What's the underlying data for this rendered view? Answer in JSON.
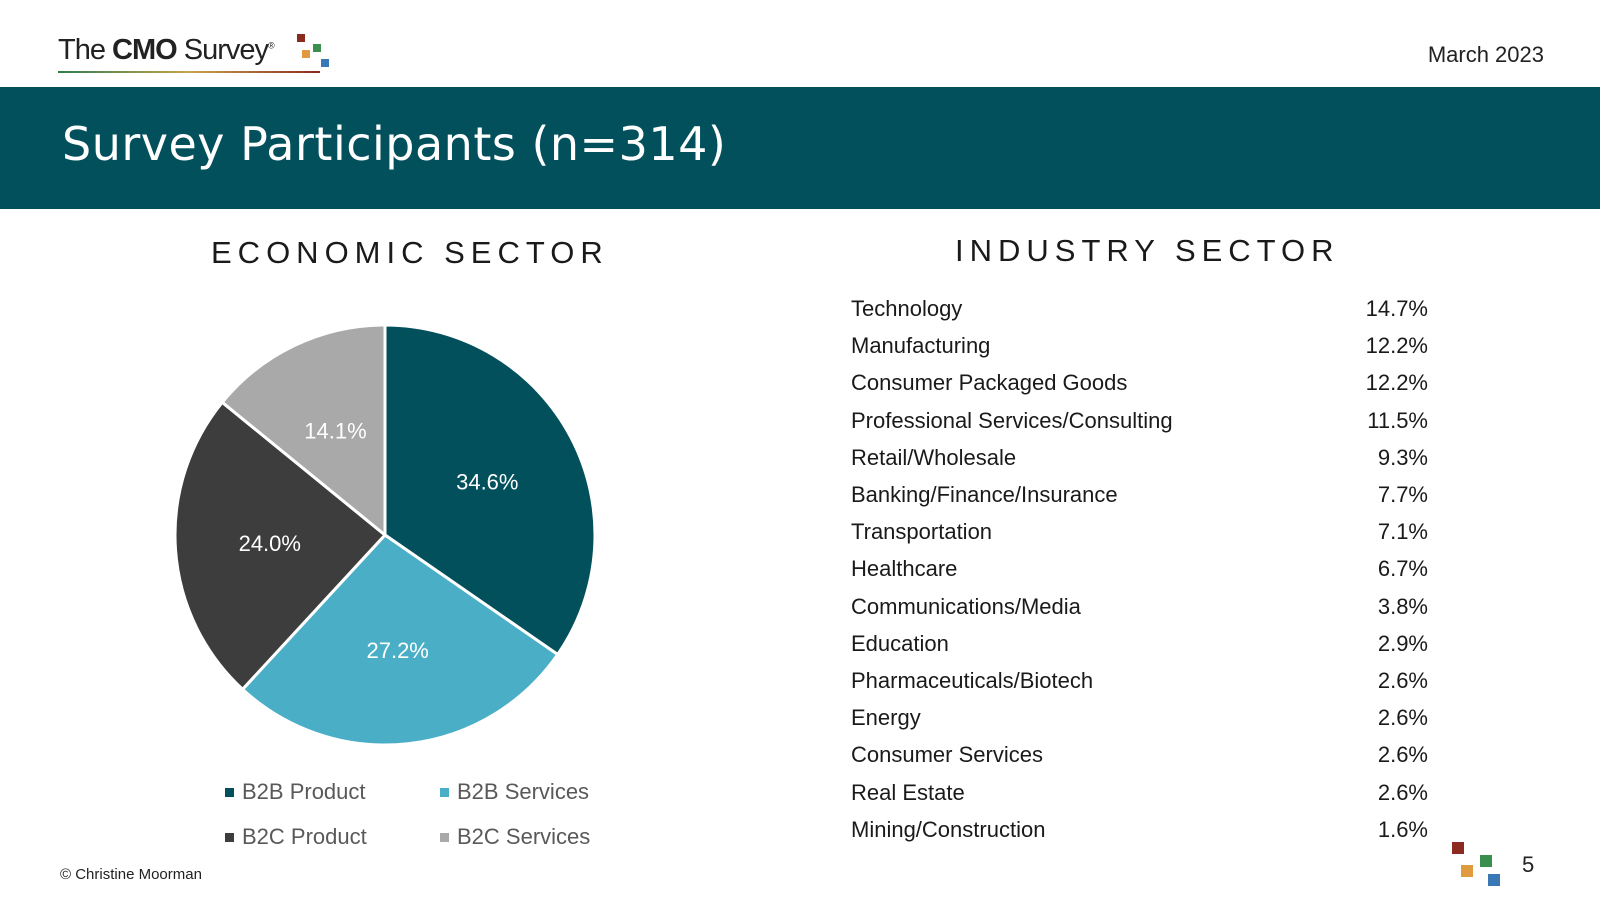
{
  "header": {
    "logo": {
      "prefix": "The",
      "brand": "CMO",
      "suffix": "Survey",
      "reg": "®"
    },
    "date": "March 2023"
  },
  "banner": {
    "title": "Survey Participants (n=314)"
  },
  "colors": {
    "banner": "#02505b",
    "b2b_product": "#02505b",
    "b2b_services": "#4aaec7",
    "b2c_product": "#3d3d3d",
    "b2c_services": "#a9a9a9",
    "logo_red": "#8b2a1e",
    "logo_orange": "#e09a3f",
    "logo_green": "#3a8f4f",
    "logo_blue": "#3a78b5"
  },
  "economic": {
    "title": "ECONOMIC SECTOR"
  },
  "industry": {
    "title": "INDUSTRY SECTOR",
    "rows": [
      {
        "name": "Technology",
        "value": "14.7%"
      },
      {
        "name": "Manufacturing",
        "value": "12.2%"
      },
      {
        "name": "Consumer Packaged Goods",
        "value": "12.2%"
      },
      {
        "name": "Professional Services/Consulting",
        "value": "11.5%"
      },
      {
        "name": "Retail/Wholesale",
        "value": "9.3%"
      },
      {
        "name": "Banking/Finance/Insurance",
        "value": "7.7%"
      },
      {
        "name": "Transportation",
        "value": "7.1%"
      },
      {
        "name": "Healthcare",
        "value": "6.7%"
      },
      {
        "name": "Communications/Media",
        "value": "3.8%"
      },
      {
        "name": "Education",
        "value": "2.9%"
      },
      {
        "name": "Pharmaceuticals/Biotech",
        "value": "2.6%"
      },
      {
        "name": "Energy",
        "value": "2.6%"
      },
      {
        "name": "Consumer Services",
        "value": "2.6%"
      },
      {
        "name": "Real Estate",
        "value": "2.6%"
      },
      {
        "name": "Mining/Construction",
        "value": "1.6%"
      }
    ]
  },
  "chart_data": {
    "type": "pie",
    "title": "ECONOMIC SECTOR",
    "categories": [
      "B2B Product",
      "B2B Services",
      "B2C Product",
      "B2C Services"
    ],
    "values": [
      34.6,
      27.2,
      24.0,
      14.1
    ],
    "labels": [
      "34.6%",
      "27.2%",
      "24.0%",
      "14.1%"
    ],
    "label_colors": [
      "#ffffff",
      "#ffffff",
      "#ffffff",
      "#ffffff"
    ],
    "legend_position": "bottom"
  },
  "legend": [
    {
      "label": "B2B Product",
      "color": "#02505b"
    },
    {
      "label": "B2B Services",
      "color": "#4aaec7"
    },
    {
      "label": "B2C Product",
      "color": "#3d3d3d"
    },
    {
      "label": "B2C Services",
      "color": "#a9a9a9"
    }
  ],
  "footer": {
    "copyright": "© Christine Moorman",
    "page": "5"
  }
}
